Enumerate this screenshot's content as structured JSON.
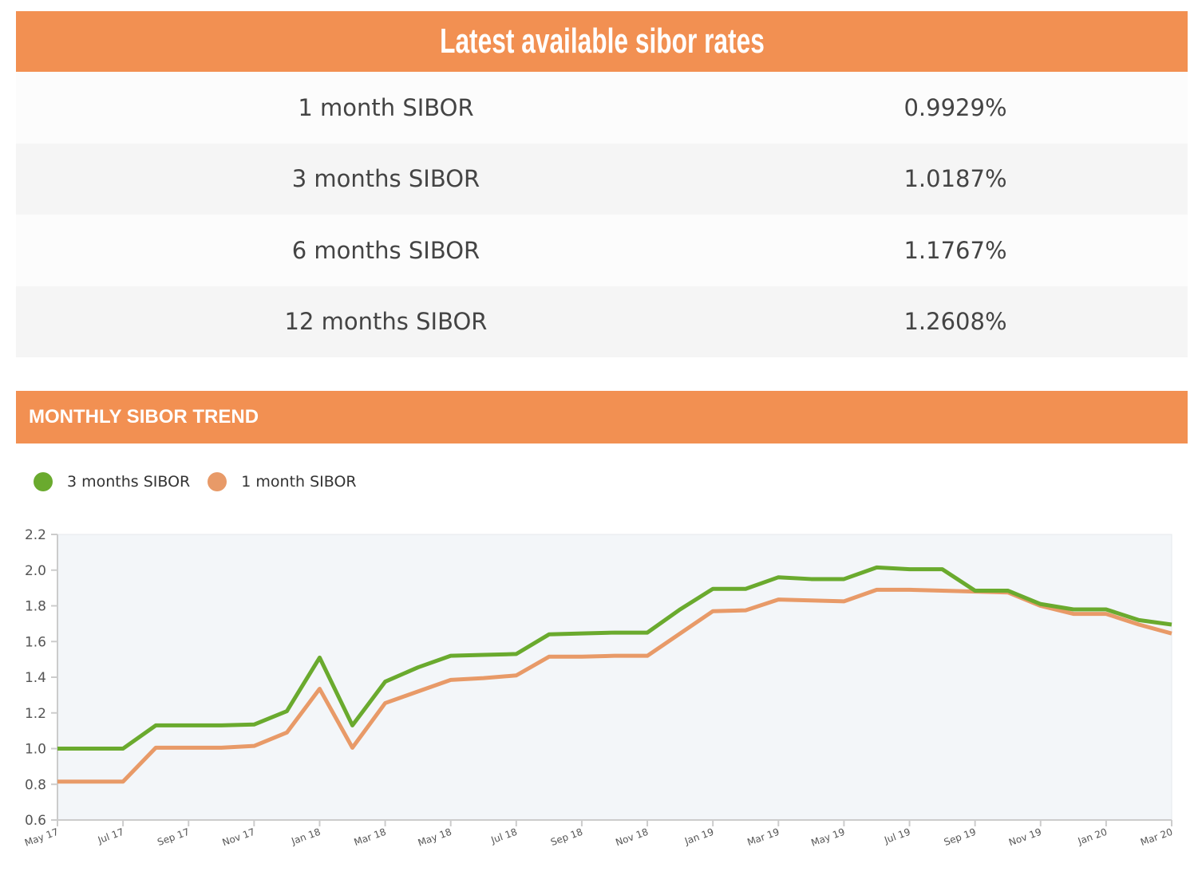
{
  "header": {
    "title": "Latest available sibor rates"
  },
  "rates": [
    {
      "name": "1 month SIBOR",
      "value": "0.9929%"
    },
    {
      "name": "3 months SIBOR",
      "value": "1.0187%"
    },
    {
      "name": "6 months SIBOR",
      "value": "1.1767%"
    },
    {
      "name": "12 months SIBOR",
      "value": "1.2608%"
    }
  ],
  "trend": {
    "title": "MONTHLY SIBOR TREND"
  },
  "colors": {
    "accent": "#F29052",
    "green": "#6aaa2e",
    "orange": "#e89a68",
    "plot_bg": "#f3f6f9"
  },
  "chart_data": {
    "type": "line",
    "ylim": [
      0.6,
      2.2
    ],
    "yticks": [
      "0.6",
      "0.8",
      "1.0",
      "1.2",
      "1.4",
      "1.6",
      "1.8",
      "2.0",
      "2.2"
    ],
    "x": [
      "May 17",
      "Jun 17",
      "Jul 17",
      "Aug 17",
      "Sep 17",
      "Oct 17",
      "Nov 17",
      "Dec 17",
      "Jan 18",
      "Feb 18",
      "Mar 18",
      "Apr 18",
      "May 18",
      "Jun 18",
      "Jul 18",
      "Aug 18",
      "Sep 18",
      "Oct 18",
      "Nov 18",
      "Dec 18",
      "Jan 19",
      "Feb 19",
      "Mar 19",
      "Apr 19",
      "May 19",
      "Jun 19",
      "Jul 19",
      "Aug 19",
      "Sep 19",
      "Oct 19",
      "Nov 19",
      "Dec 19",
      "Jan 20",
      "Feb 20",
      "Mar 20"
    ],
    "xticks": [
      "May 17",
      "Jul 17",
      "Sep 17",
      "Nov 17",
      "Jan 18",
      "Mar 18",
      "May 18",
      "Jul 18",
      "Sep 18",
      "Nov 18",
      "Jan 19",
      "Mar 19",
      "May 19",
      "Jul 19",
      "Sep 19",
      "Nov 19",
      "Jan 20",
      "Mar 20"
    ],
    "legend": "top-left",
    "grid": false,
    "series": [
      {
        "name": "3 months SIBOR",
        "color": "#6aaa2e",
        "values": [
          1.0,
          1.0,
          1.0,
          1.13,
          1.13,
          1.13,
          1.135,
          1.21,
          1.51,
          1.13,
          1.375,
          1.455,
          1.52,
          1.525,
          1.53,
          1.64,
          1.645,
          1.65,
          1.65,
          1.78,
          1.895,
          1.895,
          1.96,
          1.95,
          1.95,
          2.015,
          2.005,
          2.005,
          1.885,
          1.885,
          1.81,
          1.78,
          1.78,
          1.72,
          1.695
        ]
      },
      {
        "name": "1 month SIBOR",
        "color": "#e89a68",
        "values": [
          0.815,
          0.815,
          0.815,
          1.005,
          1.005,
          1.005,
          1.015,
          1.09,
          1.335,
          1.005,
          1.255,
          1.32,
          1.385,
          1.395,
          1.41,
          1.515,
          1.515,
          1.52,
          1.52,
          1.645,
          1.77,
          1.775,
          1.835,
          1.83,
          1.825,
          1.89,
          1.89,
          1.885,
          1.88,
          1.875,
          1.8,
          1.755,
          1.755,
          1.695,
          1.645
        ]
      }
    ]
  }
}
